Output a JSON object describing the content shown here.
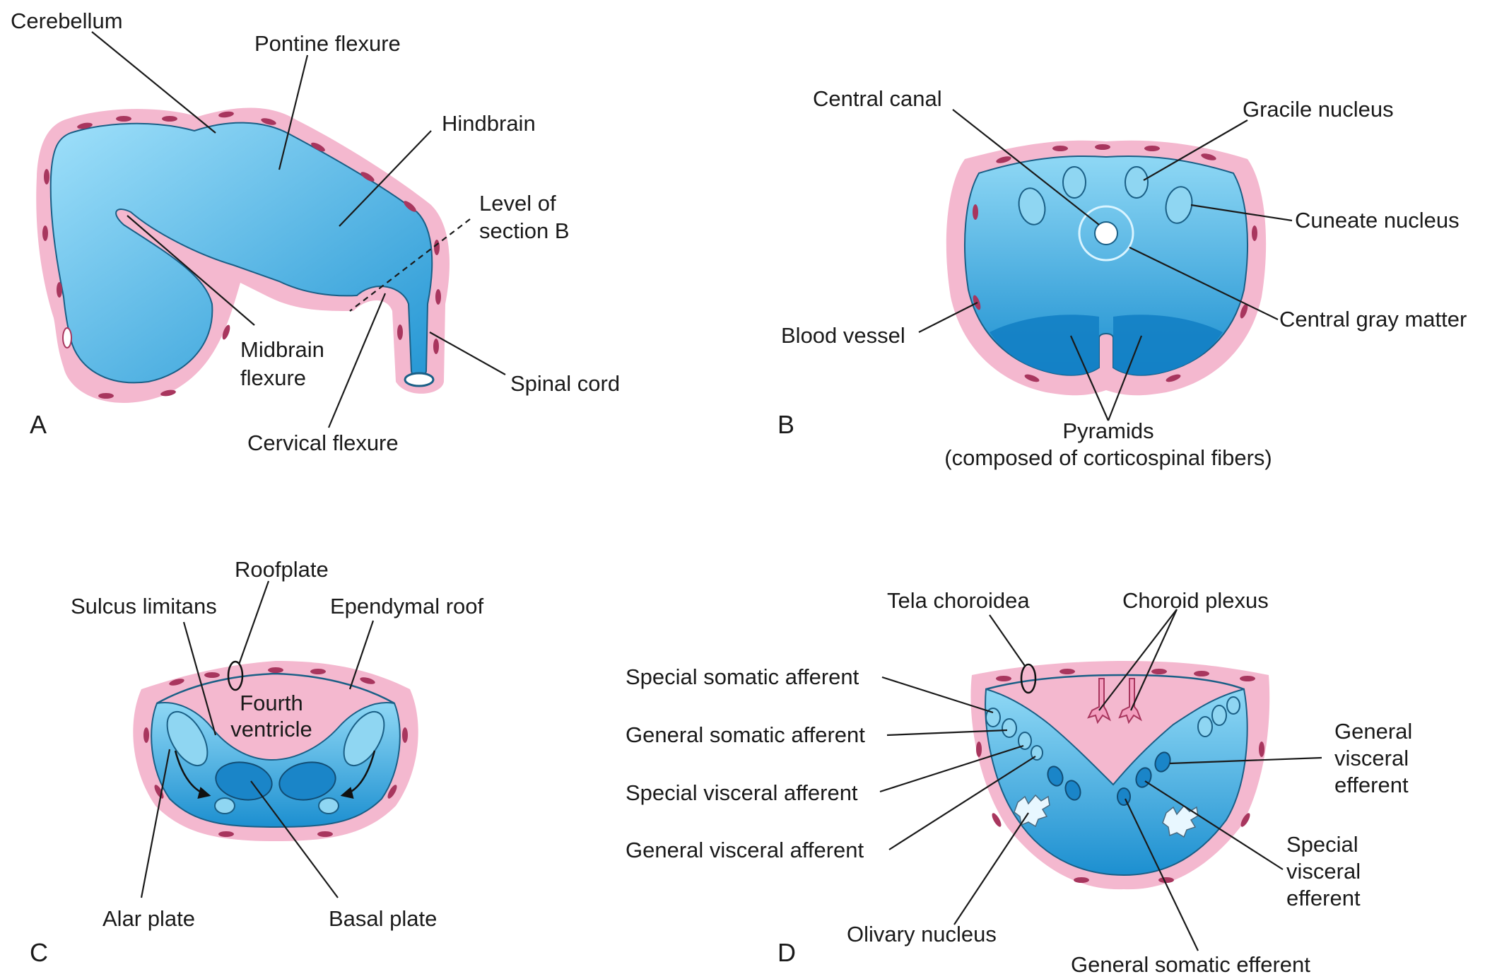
{
  "panels": {
    "A": {
      "letter": "A",
      "labels": {
        "cerebellum": "Cerebellum",
        "pontine_flexure": "Pontine flexure",
        "hindbrain": "Hindbrain",
        "level_of_1": "Level of",
        "level_of_2": "section B",
        "midbrain_1": "Midbrain",
        "midbrain_2": "flexure",
        "spinal_cord": "Spinal cord",
        "cervical_flexure": "Cervical flexure"
      }
    },
    "B": {
      "letter": "B",
      "labels": {
        "central_canal": "Central canal",
        "gracile_nucleus": "Gracile nucleus",
        "cuneate_nucleus": "Cuneate nucleus",
        "central_gray_matter": "Central gray matter",
        "blood_vessel": "Blood vessel",
        "pyramids_1": "Pyramids",
        "pyramids_2": "(composed of corticospinal fibers)"
      }
    },
    "C": {
      "letter": "C",
      "labels": {
        "roofplate": "Roofplate",
        "sulcus_limitans": "Sulcus limitans",
        "ependymal_roof": "Ependymal roof",
        "fourth_1": "Fourth",
        "fourth_2": "ventricle",
        "alar_plate": "Alar plate",
        "basal_plate": "Basal plate"
      }
    },
    "D": {
      "letter": "D",
      "labels": {
        "tela_choroidea": "Tela choroidea",
        "choroid_plexus": "Choroid plexus",
        "ssa": "Special somatic afferent",
        "gsa": "General somatic afferent",
        "sva": "Special visceral afferent",
        "gva": "General visceral afferent",
        "gve_1": "General",
        "gve_2": "visceral",
        "gve_3": "efferent",
        "sve_1": "Special",
        "sve_2": "visceral",
        "sve_3": "efferent",
        "olivary_nucleus": "Olivary nucleus",
        "gse": "General somatic efferent"
      }
    }
  },
  "colors": {
    "tissue_light": "#8fd8f5",
    "tissue_dark": "#1c8fd0",
    "sheath": "#f4b8cf",
    "vessel": "#a8365e"
  }
}
